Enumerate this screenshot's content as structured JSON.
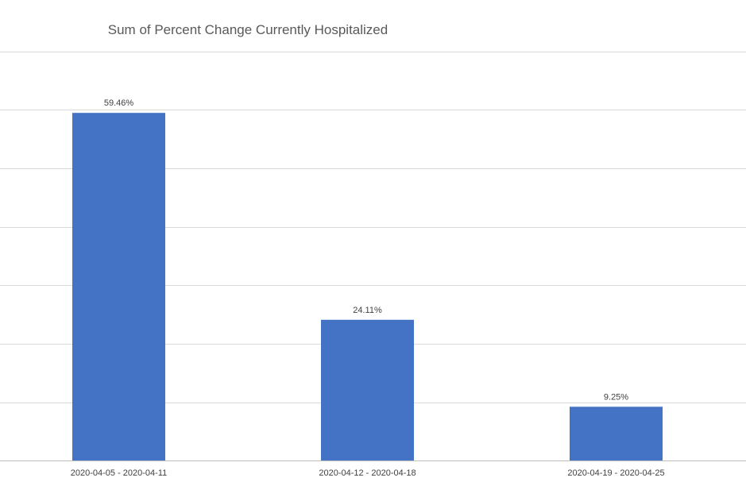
{
  "chart_data": {
    "type": "bar",
    "title": "Sum of Percent Change Currently Hospitalized",
    "xlabel": "",
    "ylabel": "",
    "categories": [
      "2020-04-05 - 2020-04-11",
      "2020-04-12 - 2020-04-18",
      "2020-04-19 - 2020-04-25"
    ],
    "values": [
      59.46,
      24.11,
      9.25
    ],
    "data_labels": [
      "59.46%",
      "24.11%",
      "9.25%"
    ],
    "ylim": [
      0,
      70
    ],
    "grid": true,
    "legend": "none",
    "bar_color": "#4472c4"
  }
}
